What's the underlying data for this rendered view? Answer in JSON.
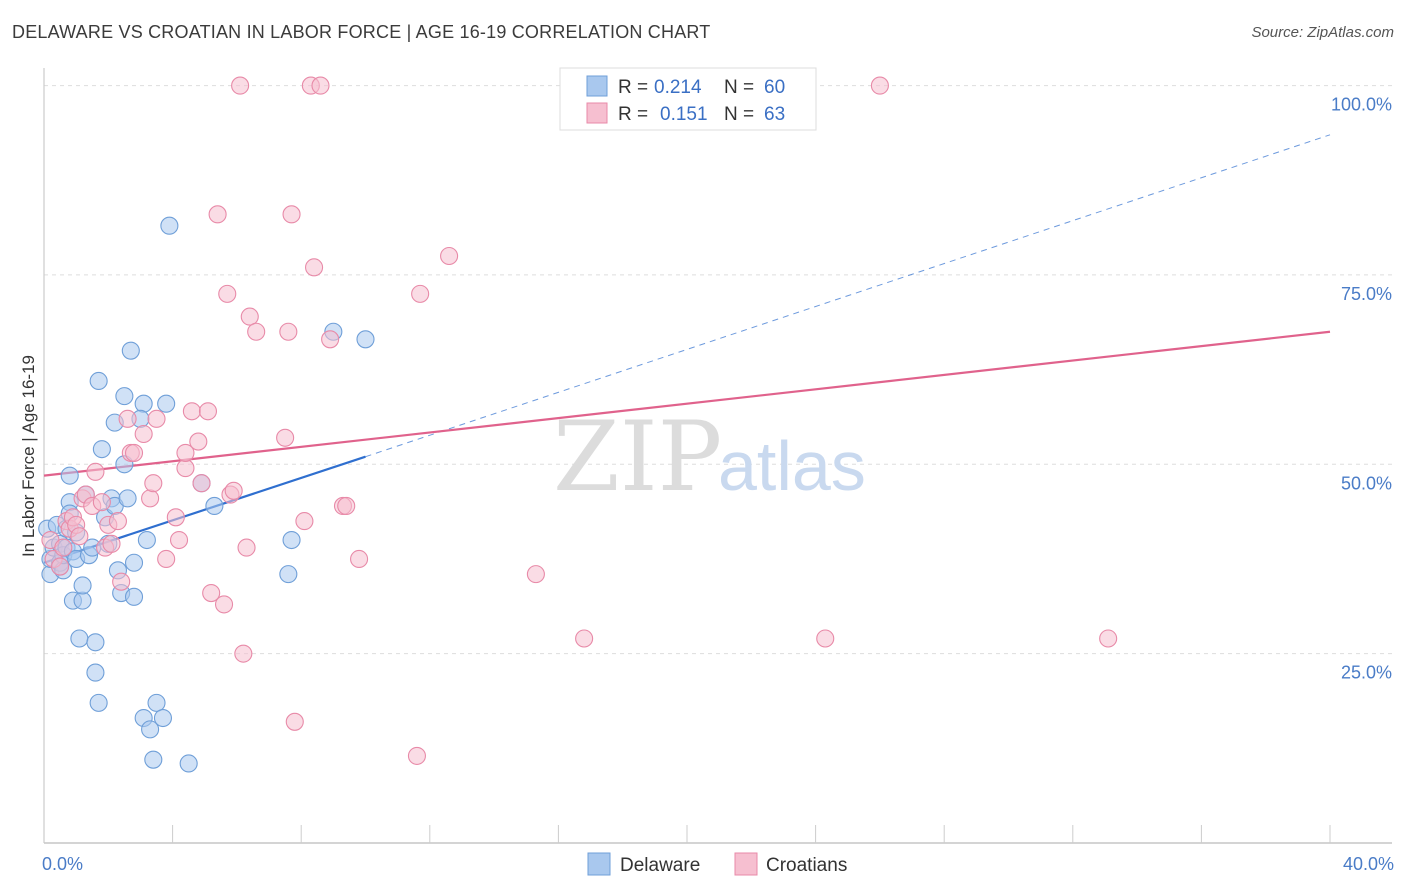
{
  "title": "DELAWARE VS CROATIAN IN LABOR FORCE | AGE 16-19 CORRELATION CHART",
  "source": "Source: ZipAtlas.com",
  "colors": {
    "delaware_fill": "#a9c8ee",
    "delaware_stroke": "#6f9fd8",
    "delaware_line": "#2f6fcf",
    "croatian_fill": "#f6bfd0",
    "croatian_stroke": "#e88aa8",
    "croatian_line": "#e0628c",
    "grid": "#dddddd",
    "tick_text": "#4a7cc7"
  },
  "legend": {
    "rows": [
      {
        "series": "Delaware",
        "r_label": "R =",
        "r_value": "0.214",
        "n_label": "N =",
        "n_value": "60"
      },
      {
        "series": "Croatians",
        "r_label": "R =",
        "r_value": "0.151",
        "n_label": "N =",
        "n_value": "63"
      }
    ]
  },
  "bottom_legend": [
    "Delaware",
    "Croatians"
  ],
  "watermark": {
    "part1": "ZIP",
    "part2": "atlas"
  },
  "chart_data": {
    "type": "scatter",
    "title": "DELAWARE VS CROATIAN IN LABOR FORCE | AGE 16-19 CORRELATION CHART",
    "xlabel": "",
    "ylabel": "In Labor Force | Age 16-19",
    "xlim": [
      0,
      40
    ],
    "ylim": [
      0,
      101
    ],
    "x_tick_labels": [
      {
        "value": 0,
        "label": "0.0%"
      },
      {
        "value": 40,
        "label": "40.0%"
      }
    ],
    "y_tick_labels": [
      {
        "value": 25,
        "label": "25.0%"
      },
      {
        "value": 50,
        "label": "50.0%"
      },
      {
        "value": 75,
        "label": "75.0%"
      },
      {
        "value": 100,
        "label": "100.0%"
      }
    ],
    "grid": true,
    "series": [
      {
        "name": "Delaware",
        "R": 0.214,
        "N": 60,
        "trend": {
          "x0": 0,
          "y0": 37.0,
          "x1": 10.0,
          "y1": 51.0,
          "dashed_to_x": 40.0,
          "dashed_to_y": 93.5
        },
        "points": [
          [
            0.1,
            41.5
          ],
          [
            0.2,
            35.5
          ],
          [
            0.2,
            37.5
          ],
          [
            0.3,
            39.0
          ],
          [
            0.4,
            42.0
          ],
          [
            0.5,
            36.5
          ],
          [
            0.5,
            39.5
          ],
          [
            0.5,
            37.0
          ],
          [
            0.6,
            36.0
          ],
          [
            0.6,
            38.0
          ],
          [
            0.7,
            41.5
          ],
          [
            0.7,
            39.0
          ],
          [
            0.8,
            48.5
          ],
          [
            0.8,
            45.0
          ],
          [
            0.8,
            43.5
          ],
          [
            0.9,
            38.5
          ],
          [
            0.9,
            32.0
          ],
          [
            1.0,
            37.5
          ],
          [
            1.0,
            41.0
          ],
          [
            1.1,
            27.0
          ],
          [
            1.2,
            32.0
          ],
          [
            1.2,
            34.0
          ],
          [
            1.3,
            46.0
          ],
          [
            1.4,
            38.0
          ],
          [
            1.5,
            39.0
          ],
          [
            1.6,
            22.5
          ],
          [
            1.6,
            26.5
          ],
          [
            1.7,
            18.5
          ],
          [
            1.7,
            61.0
          ],
          [
            1.8,
            52.0
          ],
          [
            1.9,
            43.0
          ],
          [
            2.0,
            39.5
          ],
          [
            2.1,
            45.5
          ],
          [
            2.2,
            44.5
          ],
          [
            2.2,
            55.5
          ],
          [
            2.3,
            36.0
          ],
          [
            2.4,
            33.0
          ],
          [
            2.5,
            50.0
          ],
          [
            2.5,
            59.0
          ],
          [
            2.6,
            45.5
          ],
          [
            2.7,
            65.0
          ],
          [
            2.8,
            37.0
          ],
          [
            2.8,
            32.5
          ],
          [
            3.1,
            58.0
          ],
          [
            3.1,
            16.5
          ],
          [
            3.2,
            40.0
          ],
          [
            3.3,
            15.0
          ],
          [
            3.4,
            11.0
          ],
          [
            3.5,
            18.5
          ],
          [
            3.7,
            16.5
          ],
          [
            3.8,
            58.0
          ],
          [
            3.9,
            81.5
          ],
          [
            4.5,
            10.5
          ],
          [
            4.9,
            47.5
          ],
          [
            5.3,
            44.5
          ],
          [
            7.6,
            35.5
          ],
          [
            7.7,
            40.0
          ],
          [
            9.0,
            67.5
          ],
          [
            10.0,
            66.5
          ],
          [
            3.0,
            56.0
          ]
        ]
      },
      {
        "name": "Croatians",
        "R": 0.151,
        "N": 63,
        "trend": {
          "x0": 0,
          "y0": 48.5,
          "x1": 40.0,
          "y1": 67.5
        },
        "points": [
          [
            0.2,
            40.0
          ],
          [
            0.3,
            37.5
          ],
          [
            0.5,
            36.5
          ],
          [
            0.6,
            39.0
          ],
          [
            0.7,
            42.5
          ],
          [
            0.8,
            41.5
          ],
          [
            0.9,
            43.0
          ],
          [
            1.0,
            42.0
          ],
          [
            1.1,
            40.5
          ],
          [
            1.2,
            45.5
          ],
          [
            1.3,
            46.0
          ],
          [
            1.5,
            44.5
          ],
          [
            1.6,
            49.0
          ],
          [
            1.8,
            45.0
          ],
          [
            1.9,
            39.0
          ],
          [
            2.0,
            42.0
          ],
          [
            2.1,
            39.5
          ],
          [
            2.3,
            42.5
          ],
          [
            2.4,
            34.5
          ],
          [
            2.6,
            56.0
          ],
          [
            2.7,
            51.5
          ],
          [
            2.8,
            51.5
          ],
          [
            3.1,
            54.0
          ],
          [
            3.3,
            45.5
          ],
          [
            3.4,
            47.5
          ],
          [
            3.5,
            56.0
          ],
          [
            3.8,
            37.5
          ],
          [
            4.1,
            43.0
          ],
          [
            4.2,
            40.0
          ],
          [
            4.4,
            49.5
          ],
          [
            4.4,
            51.5
          ],
          [
            4.6,
            57.0
          ],
          [
            4.8,
            53.0
          ],
          [
            4.9,
            47.5
          ],
          [
            5.1,
            57.0
          ],
          [
            5.2,
            33.0
          ],
          [
            5.4,
            83.0
          ],
          [
            5.6,
            31.5
          ],
          [
            5.7,
            72.5
          ],
          [
            5.8,
            46.0
          ],
          [
            5.9,
            46.5
          ],
          [
            6.1,
            100.0
          ],
          [
            6.2,
            25.0
          ],
          [
            6.3,
            39.0
          ],
          [
            6.4,
            69.5
          ],
          [
            6.6,
            67.5
          ],
          [
            7.5,
            53.5
          ],
          [
            7.6,
            67.5
          ],
          [
            7.7,
            83.0
          ],
          [
            7.8,
            16.0
          ],
          [
            8.1,
            42.5
          ],
          [
            8.3,
            100.0
          ],
          [
            8.4,
            76.0
          ],
          [
            8.6,
            100.0
          ],
          [
            8.9,
            66.5
          ],
          [
            9.3,
            44.5
          ],
          [
            9.4,
            44.5
          ],
          [
            9.8,
            37.5
          ],
          [
            11.6,
            11.5
          ],
          [
            11.7,
            72.5
          ],
          [
            12.6,
            77.5
          ],
          [
            15.3,
            35.5
          ],
          [
            16.8,
            27.0
          ]
        ]
      }
    ],
    "extra_croatian_points": [
      [
        24.3,
        27.0
      ],
      [
        26.0,
        100.0
      ],
      [
        33.1,
        27.0
      ]
    ]
  }
}
